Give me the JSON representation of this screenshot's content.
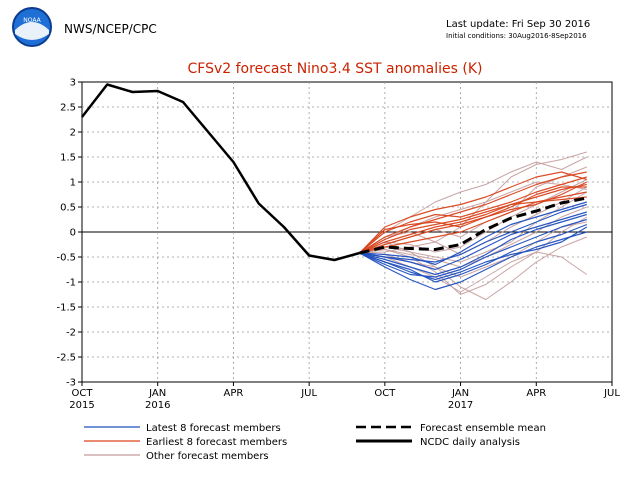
{
  "header": {
    "agency": "NWS/NCEP/CPC",
    "logo_text": "NOAA",
    "last_update": "Last update: Fri Sep 30 2016",
    "initial_conditions": "Initial conditions: 30Aug2016-8Sep2016"
  },
  "colors": {
    "title": "#cc2200",
    "latest": "#1f4fbf",
    "earliest": "#d9441c",
    "other": "#c49a9a",
    "mean": "#000000",
    "analysis": "#000000"
  },
  "chart_data": {
    "type": "line",
    "title": "CFSv2 forecast Nino3.4 SST anomalies (K)",
    "xlabel": "",
    "ylabel": "",
    "xlim": [
      0,
      21
    ],
    "ylim": [
      -3,
      3
    ],
    "grid": true,
    "y_ticks": [
      3,
      2.5,
      2,
      1.5,
      1,
      0.5,
      0,
      -0.5,
      -1,
      -1.5,
      -2,
      -2.5,
      -3
    ],
    "y_tick_labels": [
      "3",
      "2.5",
      "2",
      "1.5",
      "1",
      "0.5",
      "0",
      "-0.5",
      "-1",
      "-1.5",
      "-2",
      "-2.5",
      "-3"
    ],
    "x_ticks": [
      {
        "pos": 0,
        "label": "OCT",
        "year": "2015"
      },
      {
        "pos": 3,
        "label": "JAN",
        "year": "2016"
      },
      {
        "pos": 6,
        "label": "APR",
        "year": ""
      },
      {
        "pos": 9,
        "label": "JUL",
        "year": ""
      },
      {
        "pos": 12,
        "label": "OCT",
        "year": ""
      },
      {
        "pos": 15,
        "label": "JAN",
        "year": "2017"
      },
      {
        "pos": 18,
        "label": "APR",
        "year": ""
      },
      {
        "pos": 21,
        "label": "JUL",
        "year": ""
      }
    ],
    "analysis": {
      "name": "NCDC daily analysis",
      "x": [
        0,
        1,
        2,
        3,
        4,
        5,
        6,
        7,
        8,
        9,
        10,
        11
      ],
      "y": [
        2.3,
        2.95,
        2.8,
        2.82,
        2.6,
        2.0,
        1.4,
        0.57,
        0.1,
        -0.47,
        -0.56,
        -0.42
      ]
    },
    "ensemble_mean": {
      "name": "Forecast ensemble mean",
      "x": [
        11,
        12,
        13,
        14,
        15,
        16,
        17,
        18,
        19,
        20
      ],
      "y": [
        -0.42,
        -0.3,
        -0.33,
        -0.35,
        -0.25,
        0.05,
        0.28,
        0.42,
        0.58,
        0.68
      ]
    },
    "member_x": [
      11,
      12,
      13,
      14,
      15,
      16,
      17,
      18,
      19,
      20
    ],
    "latest_members": {
      "name": "Latest 8 forecast members",
      "series": [
        [
          -0.42,
          -0.6,
          -0.8,
          -0.95,
          -0.8,
          -0.6,
          -0.45,
          -0.35,
          -0.2,
          0.1
        ],
        [
          -0.42,
          -0.7,
          -0.95,
          -1.15,
          -1.0,
          -0.75,
          -0.5,
          -0.3,
          -0.15,
          0.0
        ],
        [
          -0.42,
          -0.5,
          -0.6,
          -0.75,
          -0.55,
          -0.3,
          -0.05,
          0.1,
          0.25,
          0.4
        ],
        [
          -0.42,
          -0.55,
          -0.7,
          -0.85,
          -0.7,
          -0.45,
          -0.15,
          0.05,
          0.2,
          0.35
        ],
        [
          -0.42,
          -0.45,
          -0.5,
          -0.65,
          -0.4,
          -0.1,
          0.15,
          0.3,
          0.45,
          0.6
        ],
        [
          -0.42,
          -0.65,
          -0.85,
          -0.9,
          -0.75,
          -0.5,
          -0.3,
          -0.1,
          0.1,
          0.25
        ],
        [
          -0.42,
          -0.5,
          -0.55,
          -0.6,
          -0.45,
          -0.2,
          0.0,
          0.2,
          0.4,
          0.55
        ],
        [
          -0.42,
          -0.6,
          -0.75,
          -1.0,
          -0.85,
          -0.65,
          -0.4,
          -0.2,
          -0.05,
          0.15
        ]
      ]
    },
    "earliest_members": {
      "name": "Earliest 8 forecast members",
      "series": [
        [
          -0.42,
          0.1,
          0.3,
          0.45,
          0.55,
          0.7,
          0.9,
          1.1,
          1.2,
          1.05
        ],
        [
          -0.42,
          -0.1,
          0.1,
          0.25,
          0.4,
          0.55,
          0.75,
          0.95,
          1.1,
          1.2
        ],
        [
          -0.42,
          0.0,
          0.2,
          0.35,
          0.3,
          0.45,
          0.6,
          0.8,
          0.95,
          1.1
        ],
        [
          -0.42,
          -0.2,
          -0.05,
          0.1,
          0.2,
          0.35,
          0.55,
          0.7,
          0.85,
          0.95
        ],
        [
          -0.42,
          0.05,
          0.15,
          0.2,
          0.1,
          0.3,
          0.5,
          0.75,
          0.9,
          0.9
        ],
        [
          -0.42,
          -0.3,
          -0.2,
          -0.1,
          0.0,
          0.2,
          0.4,
          0.6,
          0.7,
          0.8
        ],
        [
          -0.42,
          -0.15,
          0.05,
          0.15,
          0.25,
          0.4,
          0.55,
          0.6,
          0.65,
          0.7
        ],
        [
          -0.42,
          -0.25,
          -0.1,
          0.05,
          0.15,
          0.3,
          0.45,
          0.55,
          0.75,
          1.0
        ]
      ]
    },
    "other_members": {
      "name": "Other forecast members",
      "series": [
        [
          -0.42,
          -0.2,
          -0.4,
          -0.7,
          -1.1,
          -1.35,
          -1.0,
          -0.6,
          -0.3,
          -0.1
        ],
        [
          -0.42,
          -0.35,
          -0.5,
          -0.8,
          -1.25,
          -1.05,
          -0.7,
          -0.4,
          0.0,
          0.3
        ],
        [
          -0.42,
          -0.1,
          0.0,
          -0.2,
          0.1,
          0.6,
          1.1,
          1.35,
          1.45,
          1.6
        ],
        [
          -0.42,
          0.0,
          0.3,
          0.6,
          0.8,
          0.95,
          1.2,
          1.4,
          1.25,
          1.5
        ],
        [
          -0.42,
          -0.3,
          -0.4,
          -0.5,
          -0.6,
          -0.4,
          -0.2,
          0.2,
          0.5,
          0.8
        ],
        [
          -0.42,
          -0.5,
          -0.7,
          -0.9,
          -1.2,
          -0.9,
          -0.6,
          -0.4,
          -0.5,
          -0.85
        ],
        [
          -0.42,
          -0.25,
          -0.1,
          0.05,
          -0.1,
          0.2,
          0.4,
          0.9,
          1.1,
          1.3
        ],
        [
          -0.42,
          -0.4,
          -0.3,
          -0.2,
          -0.45,
          -0.2,
          0.1,
          0.35,
          0.6,
          0.9
        ],
        [
          -0.42,
          -0.15,
          0.1,
          0.3,
          0.45,
          0.6,
          0.8,
          1.0,
          0.95,
          0.85
        ],
        [
          -0.42,
          -0.45,
          -0.6,
          -0.7,
          -0.9,
          -0.7,
          -0.5,
          -0.2,
          0.1,
          0.2
        ],
        [
          -0.42,
          -0.2,
          -0.25,
          -0.4,
          -0.3,
          0.0,
          0.3,
          0.55,
          0.8,
          1.05
        ],
        [
          -0.42,
          -0.35,
          -0.45,
          -0.55,
          -0.7,
          -0.5,
          -0.25,
          0.0,
          0.3,
          0.5
        ]
      ]
    },
    "legend": {
      "latest": "Latest 8 forecast members",
      "earliest": "Earliest 8 forecast members",
      "other": "Other forecast members",
      "mean": "Forecast ensemble mean",
      "analysis": "NCDC daily analysis"
    }
  }
}
